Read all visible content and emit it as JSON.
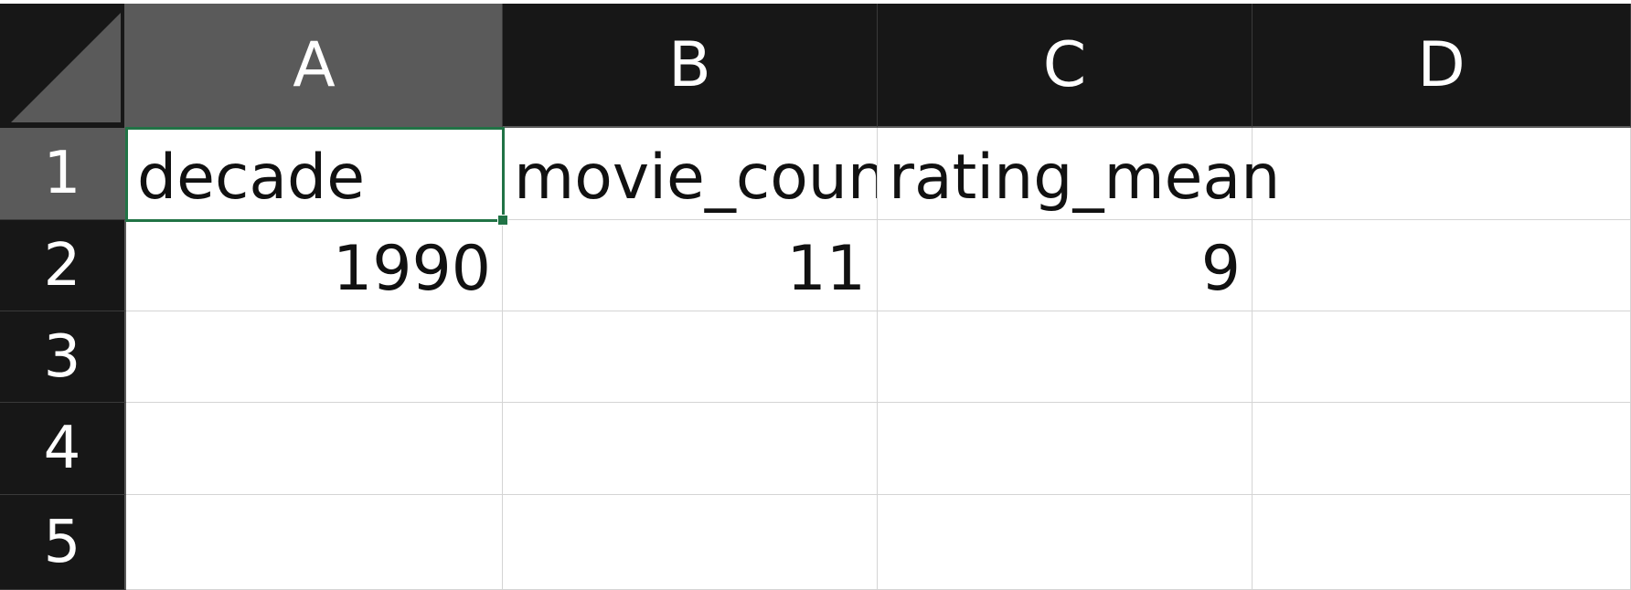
{
  "columns": [
    "A",
    "B",
    "C",
    "D"
  ],
  "rows": [
    "1",
    "2",
    "3",
    "4",
    "5"
  ],
  "selected_cell": "A1",
  "cells": {
    "A1": "decade",
    "B1": "movie_count",
    "C1": "rating_mean",
    "A2": "1990",
    "B2": "11",
    "C2": "9"
  },
  "colors": {
    "header_bg": "#171717",
    "header_selected_bg": "#5a5a5a",
    "gridline": "#d4d4d4",
    "selection_border": "#217346"
  }
}
